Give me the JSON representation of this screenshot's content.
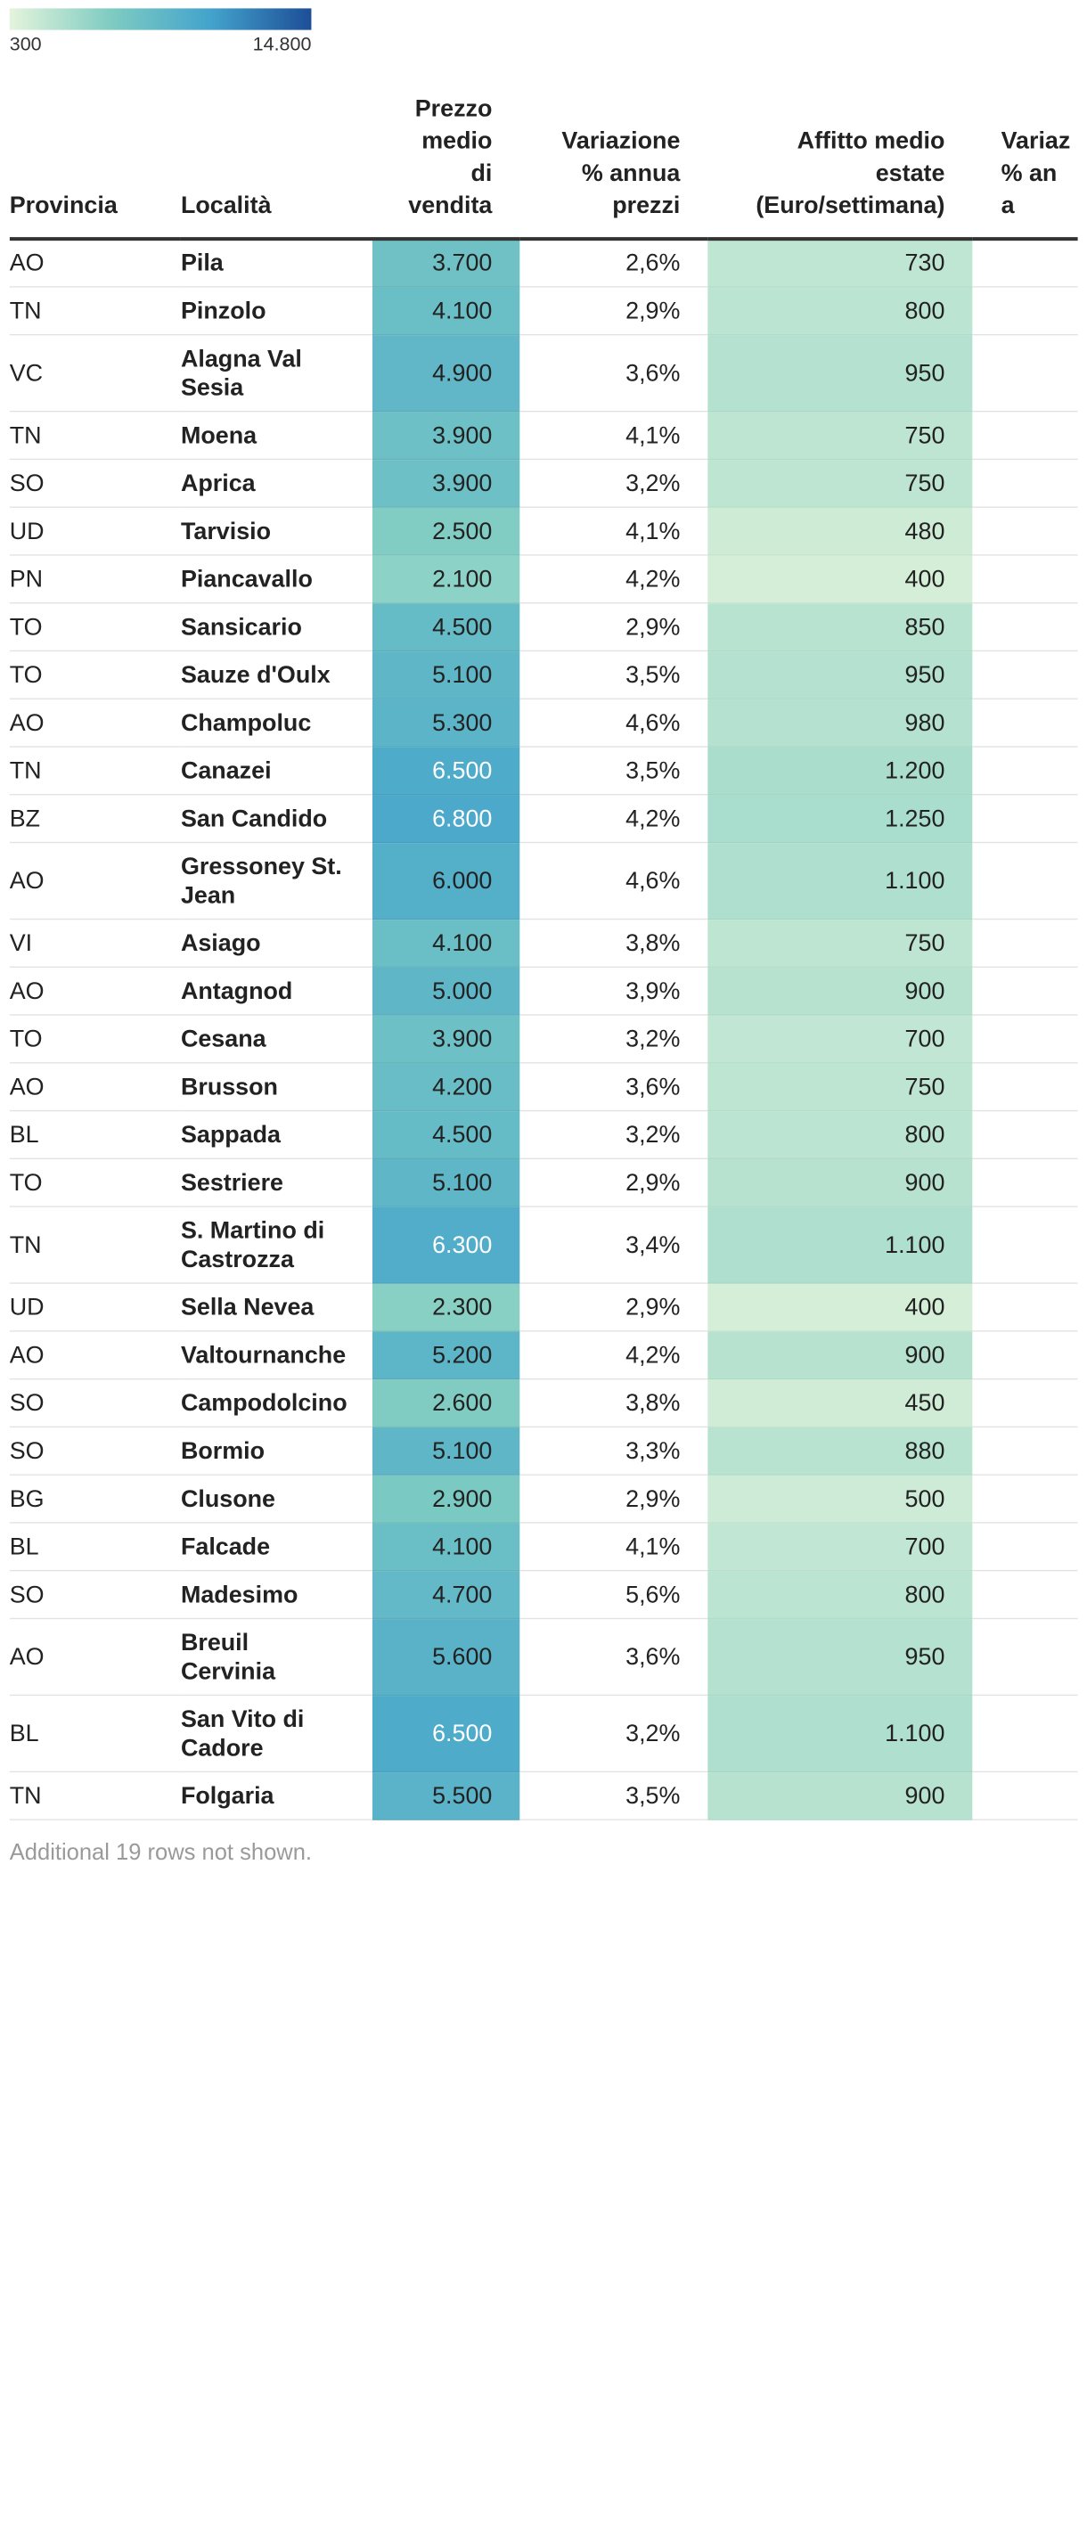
{
  "chart_data": {
    "type": "table",
    "legend": {
      "min_label": "300",
      "max_label": "14.800",
      "min_value": 300,
      "max_value": 14800,
      "colors": [
        "#e4f4dc",
        "#7fccc2",
        "#43a3cc",
        "#1d4e97"
      ]
    },
    "headers": {
      "provincia": "Provincia",
      "localita": "Località",
      "prezzo": [
        "Prezzo",
        "medio",
        "di",
        "vendita"
      ],
      "variazione_prezzi": [
        "Variazione",
        "% annua",
        "prezzi"
      ],
      "affitto": [
        "Affitto medio",
        "estate",
        "(Euro/settimana)"
      ],
      "variazione_affitti": [
        "Variaz",
        "% an",
        "a"
      ]
    },
    "rows": [
      {
        "provincia": "AO",
        "localita": [
          "Pila"
        ],
        "prezzo": "3.700",
        "prezzo_value": 3700,
        "variazione": "2,6%",
        "affitto": "730",
        "affitto_value": 730
      },
      {
        "provincia": "TN",
        "localita": [
          "Pinzolo"
        ],
        "prezzo": "4.100",
        "prezzo_value": 4100,
        "variazione": "2,9%",
        "affitto": "800",
        "affitto_value": 800
      },
      {
        "provincia": "VC",
        "localita": [
          "Alagna Val",
          "Sesia"
        ],
        "prezzo": "4.900",
        "prezzo_value": 4900,
        "variazione": "3,6%",
        "affitto": "950",
        "affitto_value": 950
      },
      {
        "provincia": "TN",
        "localita": [
          "Moena"
        ],
        "prezzo": "3.900",
        "prezzo_value": 3900,
        "variazione": "4,1%",
        "affitto": "750",
        "affitto_value": 750
      },
      {
        "provincia": "SO",
        "localita": [
          "Aprica"
        ],
        "prezzo": "3.900",
        "prezzo_value": 3900,
        "variazione": "3,2%",
        "affitto": "750",
        "affitto_value": 750
      },
      {
        "provincia": "UD",
        "localita": [
          "Tarvisio"
        ],
        "prezzo": "2.500",
        "prezzo_value": 2500,
        "variazione": "4,1%",
        "affitto": "480",
        "affitto_value": 480
      },
      {
        "provincia": "PN",
        "localita": [
          "Piancavallo"
        ],
        "prezzo": "2.100",
        "prezzo_value": 2100,
        "variazione": "4,2%",
        "affitto": "400",
        "affitto_value": 400
      },
      {
        "provincia": "TO",
        "localita": [
          "Sansicario"
        ],
        "prezzo": "4.500",
        "prezzo_value": 4500,
        "variazione": "2,9%",
        "affitto": "850",
        "affitto_value": 850
      },
      {
        "provincia": "TO",
        "localita": [
          "Sauze d'Oulx"
        ],
        "prezzo": "5.100",
        "prezzo_value": 5100,
        "variazione": "3,5%",
        "affitto": "950",
        "affitto_value": 950
      },
      {
        "provincia": "AO",
        "localita": [
          "Champoluc"
        ],
        "prezzo": "5.300",
        "prezzo_value": 5300,
        "variazione": "4,6%",
        "affitto": "980",
        "affitto_value": 980
      },
      {
        "provincia": "TN",
        "localita": [
          "Canazei"
        ],
        "prezzo": "6.500",
        "prezzo_value": 6500,
        "variazione": "3,5%",
        "affitto": "1.200",
        "affitto_value": 1200
      },
      {
        "provincia": "BZ",
        "localita": [
          "San Candido"
        ],
        "prezzo": "6.800",
        "prezzo_value": 6800,
        "variazione": "4,2%",
        "affitto": "1.250",
        "affitto_value": 1250
      },
      {
        "provincia": "AO",
        "localita": [
          "Gressoney St.",
          "Jean"
        ],
        "prezzo": "6.000",
        "prezzo_value": 6000,
        "variazione": "4,6%",
        "affitto": "1.100",
        "affitto_value": 1100
      },
      {
        "provincia": "VI",
        "localita": [
          "Asiago"
        ],
        "prezzo": "4.100",
        "prezzo_value": 4100,
        "variazione": "3,8%",
        "affitto": "750",
        "affitto_value": 750
      },
      {
        "provincia": "AO",
        "localita": [
          "Antagnod"
        ],
        "prezzo": "5.000",
        "prezzo_value": 5000,
        "variazione": "3,9%",
        "affitto": "900",
        "affitto_value": 900
      },
      {
        "provincia": "TO",
        "localita": [
          "Cesana"
        ],
        "prezzo": "3.900",
        "prezzo_value": 3900,
        "variazione": "3,2%",
        "affitto": "700",
        "affitto_value": 700
      },
      {
        "provincia": "AO",
        "localita": [
          "Brusson"
        ],
        "prezzo": "4.200",
        "prezzo_value": 4200,
        "variazione": "3,6%",
        "affitto": "750",
        "affitto_value": 750
      },
      {
        "provincia": "BL",
        "localita": [
          "Sappada"
        ],
        "prezzo": "4.500",
        "prezzo_value": 4500,
        "variazione": "3,2%",
        "affitto": "800",
        "affitto_value": 800
      },
      {
        "provincia": "TO",
        "localita": [
          "Sestriere"
        ],
        "prezzo": "5.100",
        "prezzo_value": 5100,
        "variazione": "2,9%",
        "affitto": "900",
        "affitto_value": 900
      },
      {
        "provincia": "TN",
        "localita": [
          "S. Martino di",
          "Castrozza"
        ],
        "prezzo": "6.300",
        "prezzo_value": 6300,
        "variazione": "3,4%",
        "affitto": "1.100",
        "affitto_value": 1100
      },
      {
        "provincia": "UD",
        "localita": [
          "Sella Nevea"
        ],
        "prezzo": "2.300",
        "prezzo_value": 2300,
        "variazione": "2,9%",
        "affitto": "400",
        "affitto_value": 400
      },
      {
        "provincia": "AO",
        "localita": [
          "Valtournanche"
        ],
        "prezzo": "5.200",
        "prezzo_value": 5200,
        "variazione": "4,2%",
        "affitto": "900",
        "affitto_value": 900
      },
      {
        "provincia": "SO",
        "localita": [
          "Campodolcino"
        ],
        "prezzo": "2.600",
        "prezzo_value": 2600,
        "variazione": "3,8%",
        "affitto": "450",
        "affitto_value": 450
      },
      {
        "provincia": "SO",
        "localita": [
          "Bormio"
        ],
        "prezzo": "5.100",
        "prezzo_value": 5100,
        "variazione": "3,3%",
        "affitto": "880",
        "affitto_value": 880
      },
      {
        "provincia": "BG",
        "localita": [
          "Clusone"
        ],
        "prezzo": "2.900",
        "prezzo_value": 2900,
        "variazione": "2,9%",
        "affitto": "500",
        "affitto_value": 500
      },
      {
        "provincia": "BL",
        "localita": [
          "Falcade"
        ],
        "prezzo": "4.100",
        "prezzo_value": 4100,
        "variazione": "4,1%",
        "affitto": "700",
        "affitto_value": 700
      },
      {
        "provincia": "SO",
        "localita": [
          "Madesimo"
        ],
        "prezzo": "4.700",
        "prezzo_value": 4700,
        "variazione": "5,6%",
        "affitto": "800",
        "affitto_value": 800
      },
      {
        "provincia": "AO",
        "localita": [
          "Breuil",
          "Cervinia"
        ],
        "prezzo": "5.600",
        "prezzo_value": 5600,
        "variazione": "3,6%",
        "affitto": "950",
        "affitto_value": 950
      },
      {
        "provincia": "BL",
        "localita": [
          "San Vito di",
          "Cadore"
        ],
        "prezzo": "6.500",
        "prezzo_value": 6500,
        "variazione": "3,2%",
        "affitto": "1.100",
        "affitto_value": 1100
      },
      {
        "provincia": "TN",
        "localita": [
          "Folgaria"
        ],
        "prezzo": "5.500",
        "prezzo_value": 5500,
        "variazione": "3,5%",
        "affitto": "900",
        "affitto_value": 900
      }
    ],
    "footer": "Additional 19 rows not shown."
  }
}
